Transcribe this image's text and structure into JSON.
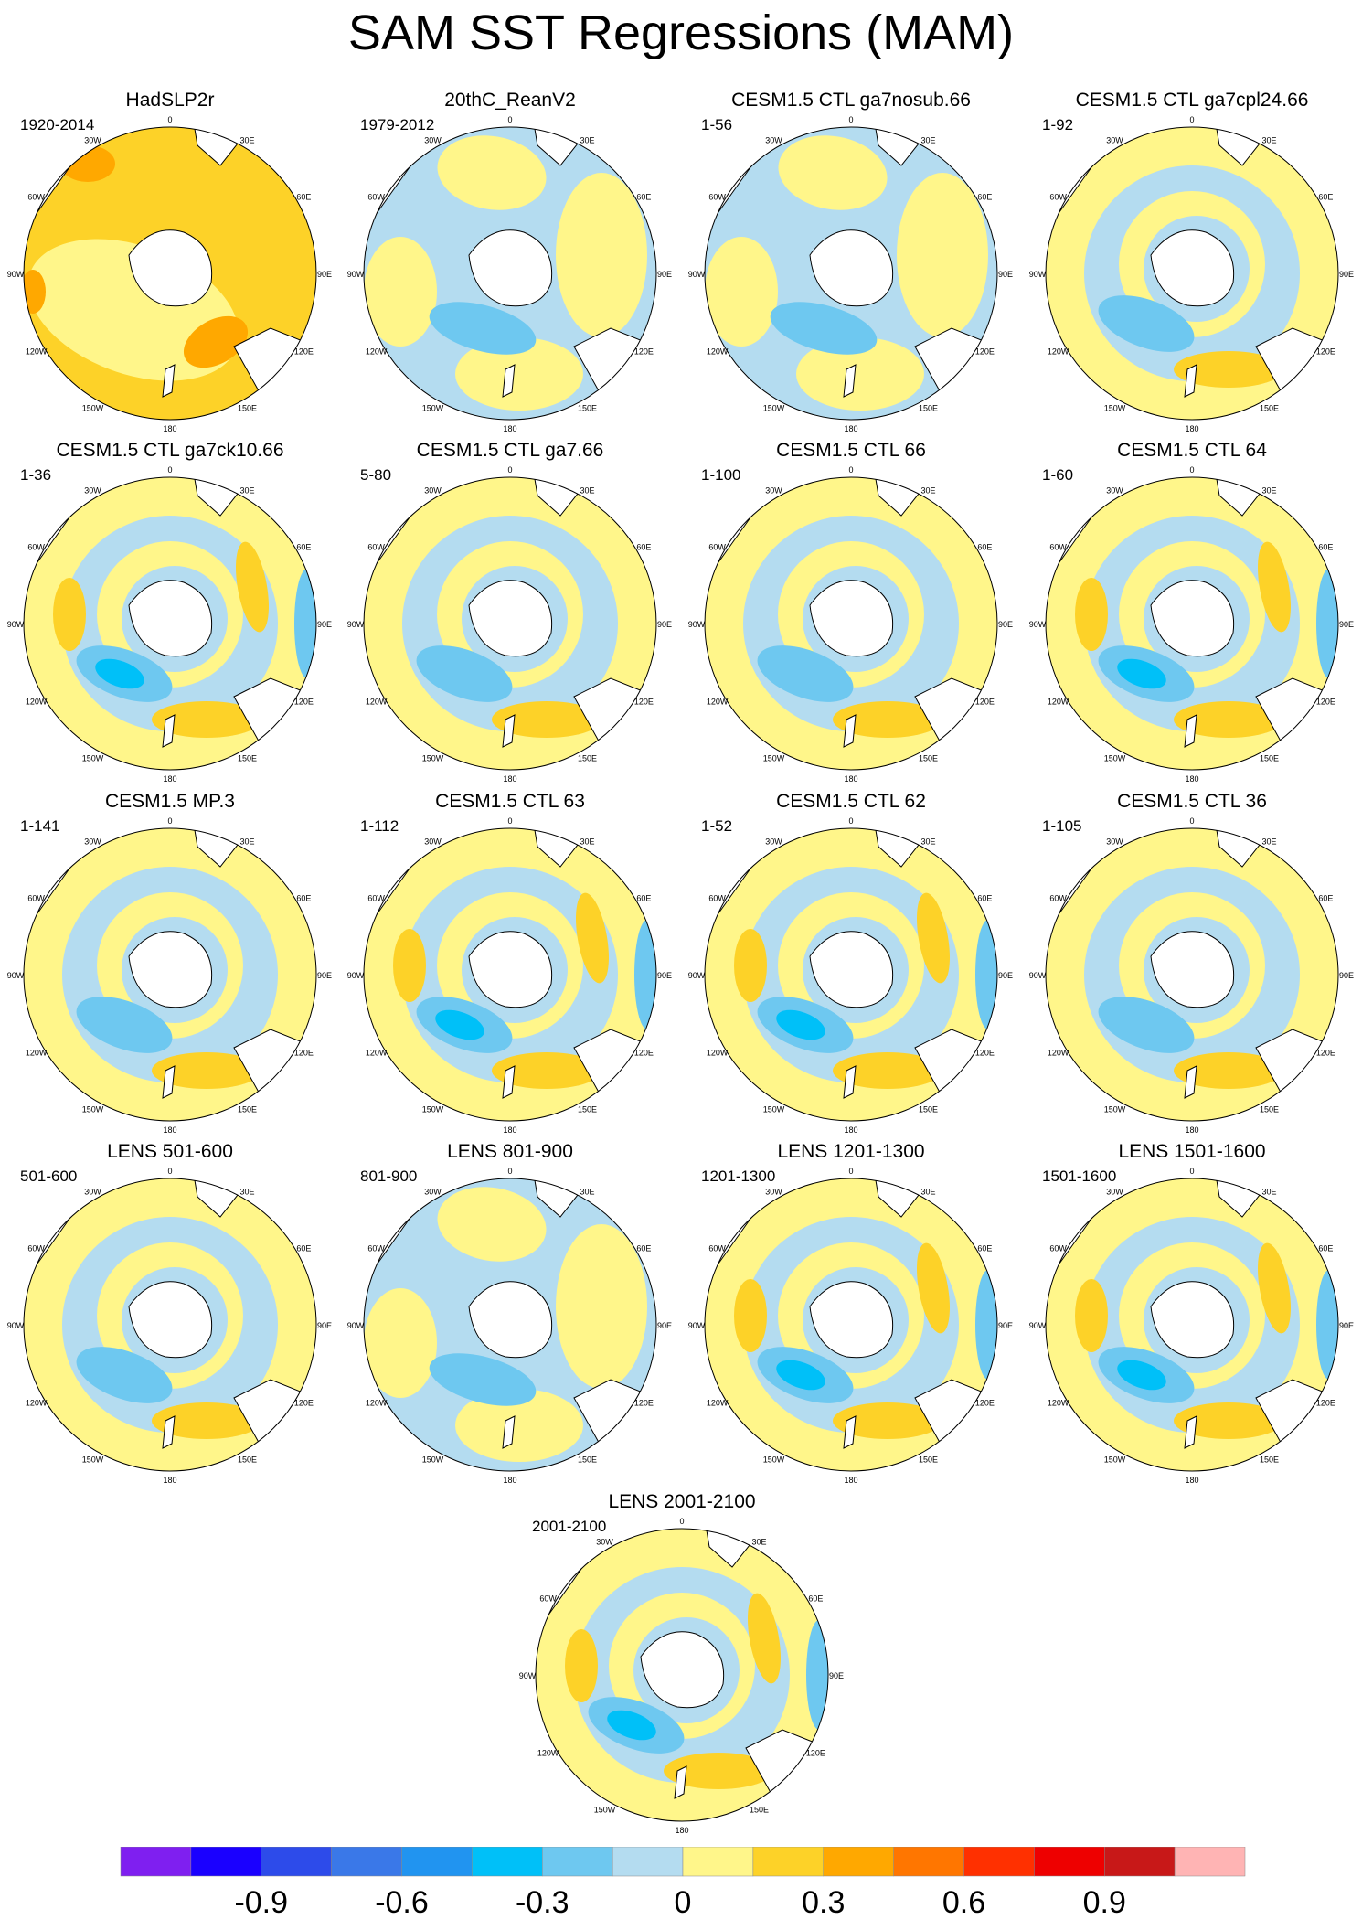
{
  "title": "SAM SST Regressions (MAM)",
  "panels": [
    {
      "title": "HadSLP2r",
      "subtitle": "1920-2014",
      "pattern": "warm"
    },
    {
      "title": "20thC_ReanV2",
      "subtitle": "1979-2012",
      "pattern": "mixed-cool"
    },
    {
      "title": "CESM1.5 CTL ga7nosub.66",
      "subtitle": "1-56",
      "pattern": "mixed"
    },
    {
      "title": "CESM1.5 CTL ga7cpl24.66",
      "subtitle": "1-92",
      "pattern": "ring"
    },
    {
      "title": "CESM1.5 CTL ga7ck10.66",
      "subtitle": "1-36",
      "pattern": "ring-strong"
    },
    {
      "title": "CESM1.5 CTL ga7.66",
      "subtitle": "5-80",
      "pattern": "ring"
    },
    {
      "title": "CESM1.5 CTL 66",
      "subtitle": "1-100",
      "pattern": "ring"
    },
    {
      "title": "CESM1.5 CTL 64",
      "subtitle": "1-60",
      "pattern": "ring-strong"
    },
    {
      "title": "CESM1.5 MP.3",
      "subtitle": "1-141",
      "pattern": "ring"
    },
    {
      "title": "CESM1.5 CTL 63",
      "subtitle": "1-112",
      "pattern": "ring-strong"
    },
    {
      "title": "CESM1.5 CTL 62",
      "subtitle": "1-52",
      "pattern": "ring-strong"
    },
    {
      "title": "CESM1.5 CTL 36",
      "subtitle": "1-105",
      "pattern": "ring"
    },
    {
      "title": "LENS 501-600",
      "subtitle": "501-600",
      "pattern": "ring"
    },
    {
      "title": "LENS 801-900",
      "subtitle": "801-900",
      "pattern": "mixed-cool"
    },
    {
      "title": "LENS 1201-1300",
      "subtitle": "1201-1300",
      "pattern": "ring-strong"
    },
    {
      "title": "LENS 1501-1600",
      "subtitle": "1501-1600",
      "pattern": "ring-strong"
    },
    {
      "title": "LENS 2001-2100",
      "subtitle": "2001-2100",
      "pattern": "ring-strong"
    }
  ],
  "longitude_labels": [
    "0",
    "30E",
    "60E",
    "90E",
    "120E",
    "150E",
    "180",
    "150W",
    "120W",
    "90W",
    "60W",
    "30W"
  ],
  "colorbar": {
    "colors": [
      "#7f1ff0",
      "#1a00ff",
      "#2d4bea",
      "#3a78e8",
      "#2194f0",
      "#00c0f8",
      "#6ec8f0",
      "#b4dcf0",
      "#fff68a",
      "#fdd228",
      "#ffa800",
      "#ff7600",
      "#ff3000",
      "#ee0000",
      "#c81818",
      "#ffb4b4"
    ],
    "tick_labels": [
      "-0.9",
      "-0.6",
      "-0.3",
      "0",
      "0.3",
      "0.6",
      "0.9"
    ]
  },
  "map_colors": {
    "land": "#ffffff",
    "coast": "#000000",
    "weak_pos": "#fff68a",
    "weak_neg": "#b4dcf0",
    "mid_pos": "#fdd228",
    "mid_neg": "#6ec8f0",
    "strong_pos": "#ffa800",
    "strong_neg": "#00c0f8"
  }
}
